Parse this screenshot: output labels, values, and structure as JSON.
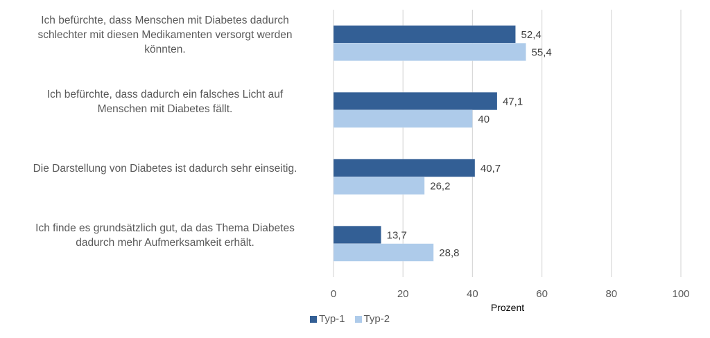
{
  "chart_data": {
    "type": "bar",
    "orientation": "horizontal",
    "title": "",
    "categories": [
      "Ich befürchte, dass Menschen mit Diabetes dadurch schlechter mit diesen Medikamenten versorgt werden könnten.",
      "Ich befürchte, dass dadurch ein falsches Licht auf Menschen mit Diabetes fällt.",
      "Die Darstellung von Diabetes ist dadurch sehr einseitig.",
      "Ich finde es grundsätzlich gut, da das Thema Diabetes dadurch mehr Aufmerksamkeit erhält."
    ],
    "category_lines": [
      [
        "Ich befürchte, dass Menschen mit Diabetes dadurch",
        "schlechter mit diesen Medikamenten versorgt werden",
        "könnten."
      ],
      [
        "Ich befürchte, dass dadurch ein falsches Licht auf",
        "Menschen mit Diabetes fällt."
      ],
      [
        "Die Darstellung von Diabetes ist dadurch sehr einseitig."
      ],
      [
        "Ich finde es grundsätzlich gut, da das Thema Diabetes",
        "dadurch mehr Aufmerksamkeit erhält."
      ]
    ],
    "series": [
      {
        "name": "Typ-1",
        "color": "#335f95",
        "values": [
          52.4,
          47.1,
          40.7,
          13.7
        ],
        "labels": [
          "52,4",
          "47,1",
          "40,7",
          "13,7"
        ]
      },
      {
        "name": "Typ-2",
        "color": "#aecbea",
        "values": [
          55.4,
          40,
          26.2,
          28.8
        ],
        "labels": [
          "55,4",
          "40",
          "26,2",
          "28,8"
        ]
      }
    ],
    "xlabel": "Prozent",
    "ylabel": "",
    "xlim": [
      0,
      100
    ],
    "xticks": [
      0,
      20,
      40,
      60,
      80,
      100
    ],
    "xtick_labels": [
      "0",
      "20",
      "40",
      "60",
      "80",
      "100"
    ],
    "grid": "vertical",
    "gridline_color": "#d9d9d9",
    "legend_position": "bottom"
  }
}
